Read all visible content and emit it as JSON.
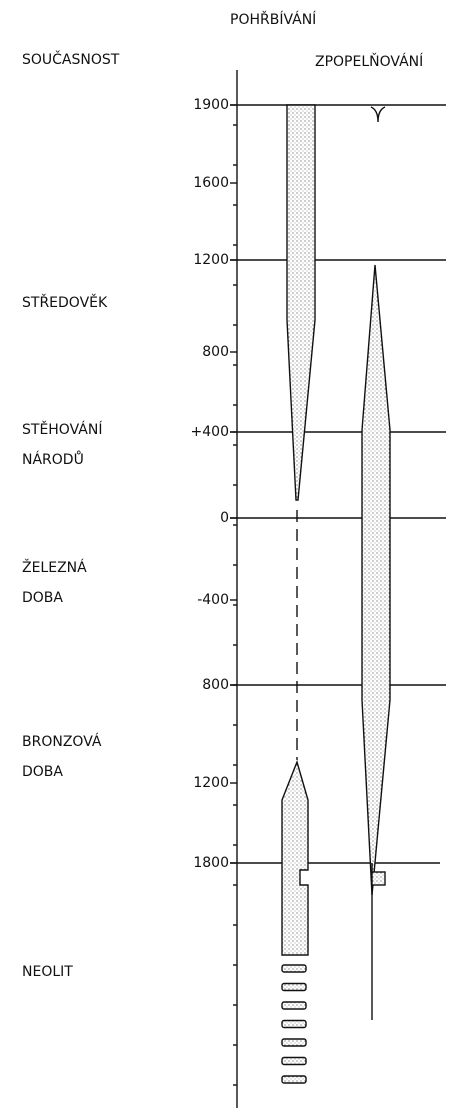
{
  "columns": [
    "POHŘBÍVÁNÍ",
    "ZPOPELŇOVÁNÍ"
  ],
  "eras": [
    [
      "SOUČASNOST"
    ],
    [
      "STŘEDOVĚK"
    ],
    [
      "STĚHOVÁNÍ",
      "NÁRODŮ"
    ],
    [
      "ŽELEZNÁ",
      "DOBA"
    ],
    [
      "BRONZOVÁ",
      "DOBA"
    ],
    [
      "NEOLIT"
    ]
  ],
  "ticks": [
    "1900",
    "1600",
    "1200",
    "800",
    "+400",
    "0",
    "-400",
    "800",
    "1200",
    "1800"
  ]
}
